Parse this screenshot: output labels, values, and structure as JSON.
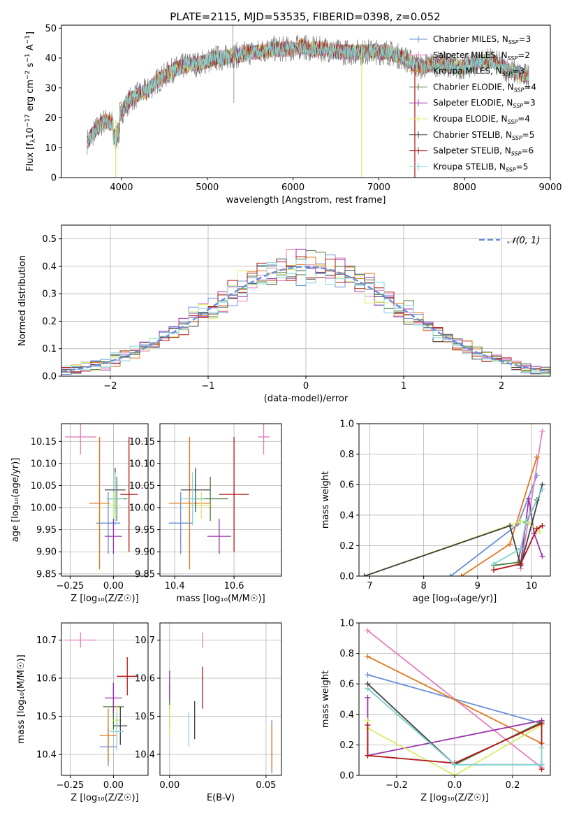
{
  "figure": {
    "title": "PLATE=2115, MJD=53535, FIBERID=0398, z=0.052",
    "colors": {
      "chabrier_miles": "#6a8fd8",
      "salpeter_miles": "#e57fbf",
      "kroupa_miles": "#e0781e",
      "chabrier_elodie": "#4e7a3a",
      "salpeter_elodie": "#9b34ad",
      "kroupa_elodie": "#d8ec6a",
      "chabrier_stelib": "#404040",
      "salpeter_stelib": "#b01515",
      "kroupa_stelib": "#7fd6d6",
      "data": "#7f7f7f"
    }
  },
  "chart_data": [
    {
      "type": "line",
      "title": "PLATE=2115, MJD=53535, FIBERID=0398, z=0.052",
      "xlabel": "wavelength [Angstrom, rest frame]",
      "ylabel_pre": "Flux [f",
      "ylabel_sub": "λ",
      "ylabel_mid": "10",
      "ylabel_exp": "−17",
      "ylabel_post": " erg cm",
      "ylabel_exp2": "−2",
      "ylabel_post2": " s",
      "ylabel_exp3": "−1",
      "ylabel_post3": " A",
      "ylabel_exp4": "−1",
      "ylabel_end": "]",
      "xlim": [
        3300,
        9000
      ],
      "ylim": [
        0,
        51
      ],
      "xticks": [
        "4000",
        "5000",
        "6000",
        "7000",
        "8000",
        "9000"
      ],
      "yticks": [
        "0",
        "10",
        "20",
        "30",
        "40",
        "50"
      ],
      "grid": false,
      "legend_position": "top-right",
      "legend": [
        {
          "text": "Chabrier MILES, N",
          "sub": "SSP",
          "suffix": "=3"
        },
        {
          "text": "Salpeter MILES, N",
          "sub": "SSP",
          "suffix": "=2"
        },
        {
          "text": "Kroupa MILES, N",
          "sub": "SSP",
          "suffix": "=3"
        },
        {
          "text": "Chabrier ELODIE, N",
          "sub": "SSP",
          "suffix": "=4"
        },
        {
          "text": "Salpeter ELODIE, N",
          "sub": "SSP",
          "suffix": "=3"
        },
        {
          "text": "Kroupa ELODIE, N",
          "sub": "SSP",
          "suffix": "=4"
        },
        {
          "text": "Chabrier STELIB, N",
          "sub": "SSP",
          "suffix": "=5"
        },
        {
          "text": "Salpeter STELIB, N",
          "sub": "SSP",
          "suffix": "=6"
        },
        {
          "text": "Kroupa STELIB, N",
          "sub": "SSP",
          "suffix": "=5"
        }
      ],
      "continuum": [
        [
          3600,
          12
        ],
        [
          3700,
          16
        ],
        [
          3800,
          19
        ],
        [
          3900,
          18
        ],
        [
          4000,
          22
        ],
        [
          4100,
          26
        ],
        [
          4200,
          28
        ],
        [
          4300,
          29
        ],
        [
          4400,
          32
        ],
        [
          4500,
          34
        ],
        [
          4600,
          36
        ],
        [
          4700,
          37
        ],
        [
          4800,
          38
        ],
        [
          4900,
          38
        ],
        [
          5000,
          39
        ],
        [
          5100,
          40
        ],
        [
          5200,
          40
        ],
        [
          5300,
          41
        ],
        [
          5400,
          41
        ],
        [
          5500,
          42
        ],
        [
          5600,
          42
        ],
        [
          5700,
          43
        ],
        [
          5800,
          43
        ],
        [
          5900,
          43
        ],
        [
          6000,
          43
        ],
        [
          6100,
          44
        ],
        [
          6200,
          43
        ],
        [
          6300,
          43
        ],
        [
          6400,
          43
        ],
        [
          6500,
          42
        ],
        [
          6600,
          42
        ],
        [
          6700,
          42
        ],
        [
          6800,
          42
        ],
        [
          6900,
          42
        ],
        [
          7000,
          42
        ],
        [
          7100,
          42
        ],
        [
          7200,
          41
        ],
        [
          7300,
          40
        ],
        [
          7400,
          38
        ],
        [
          7500,
          37
        ],
        [
          7600,
          38
        ],
        [
          7700,
          38
        ],
        [
          7800,
          38
        ],
        [
          7900,
          37
        ],
        [
          8000,
          37
        ],
        [
          8100,
          38
        ],
        [
          8200,
          39
        ],
        [
          8300,
          39
        ],
        [
          8400,
          38
        ],
        [
          8500,
          36
        ],
        [
          8600,
          35
        ],
        [
          8700,
          34
        ],
        [
          8750,
          34
        ]
      ],
      "dips": [
        {
          "x": 3933,
          "y": 0,
          "series": "kroupa_elodie"
        },
        {
          "x": 6800,
          "y": 0,
          "series": "kroupa_elodie"
        },
        {
          "x": 7420,
          "y": 0,
          "series": "salpeter_stelib"
        }
      ]
    },
    {
      "type": "histogram",
      "xlabel": "(data-model)/error",
      "ylabel": "Normed distribution",
      "xlim": [
        -2.5,
        2.5
      ],
      "ylim": [
        0,
        0.55
      ],
      "xticks": [
        "−2",
        "−1",
        "0",
        "1",
        "2"
      ],
      "yticks": [
        "0.0",
        "0.1",
        "0.2",
        "0.3",
        "0.4",
        "0.5"
      ],
      "grid": true,
      "legend_position": "top-right",
      "legend_label": "𝒩(0, 1)",
      "bin_width": 0.1,
      "bin_start": -2.5
    },
    {
      "type": "errorbar",
      "xlabel": "Z [log₁₀(Z/Z☉)]",
      "ylabel": "age  [log₁₀(age/yr)]",
      "xlim": [
        -0.3,
        0.2
      ],
      "ylim": [
        9.845,
        10.19
      ],
      "xticks": [
        "−0.25",
        "0.00"
      ],
      "yticks": [
        "9.85",
        "9.90",
        "9.95",
        "10.00",
        "10.05",
        "10.10",
        "10.15"
      ],
      "grid": true,
      "points": [
        {
          "series": "salpeter_miles",
          "x": -0.19,
          "y": 10.16,
          "xerr": 0.09,
          "yerr": 0.04
        },
        {
          "series": "chabrier_miles",
          "x": -0.03,
          "y": 9.965,
          "xerr": 0.07,
          "yerr": 0.07
        },
        {
          "series": "kroupa_miles",
          "x": -0.08,
          "y": 10.01,
          "xerr": 0.06,
          "yerr": 0.15
        },
        {
          "series": "chabrier_elodie",
          "x": 0.02,
          "y": 10.02,
          "xerr": 0.06,
          "yerr": 0.05
        },
        {
          "series": "salpeter_elodie",
          "x": 0.0,
          "y": 9.935,
          "xerr": 0.05,
          "yerr": 0.04
        },
        {
          "series": "kroupa_elodie",
          "x": 0.0,
          "y": 10.005,
          "xerr": 0.04,
          "yerr": 0.03
        },
        {
          "series": "chabrier_stelib",
          "x": 0.01,
          "y": 10.04,
          "xerr": 0.06,
          "yerr": 0.05
        },
        {
          "series": "salpeter_stelib",
          "x": 0.09,
          "y": 10.03,
          "xerr": 0.05,
          "yerr": 0.13
        },
        {
          "series": "kroupa_stelib",
          "x": 0.01,
          "y": 10.02,
          "xerr": 0.05,
          "yerr": 0.06
        }
      ]
    },
    {
      "type": "errorbar",
      "xlabel": "mass [log₁₀(M/M☉)]",
      "ylabel": "",
      "xlim": [
        10.35,
        10.76
      ],
      "ylim": [
        9.845,
        10.19
      ],
      "xticks": [
        "10.4",
        "10.6"
      ],
      "yticks": [
        "9.85",
        "9.90",
        "9.95",
        "10.00",
        "10.05",
        "10.10",
        "10.15"
      ],
      "grid": true,
      "points": [
        {
          "series": "salpeter_miles",
          "x": 10.7,
          "y": 10.16,
          "xerr": 0.02,
          "yerr": 0.04
        },
        {
          "series": "chabrier_miles",
          "x": 10.42,
          "y": 9.965,
          "xerr": 0.04,
          "yerr": 0.07
        },
        {
          "series": "kroupa_miles",
          "x": 10.45,
          "y": 10.01,
          "xerr": 0.07,
          "yerr": 0.15
        },
        {
          "series": "chabrier_elodie",
          "x": 10.52,
          "y": 10.02,
          "xerr": 0.06,
          "yerr": 0.05
        },
        {
          "series": "salpeter_elodie",
          "x": 10.55,
          "y": 9.935,
          "xerr": 0.04,
          "yerr": 0.04
        },
        {
          "series": "kroupa_elodie",
          "x": 10.49,
          "y": 10.005,
          "xerr": 0.04,
          "yerr": 0.03
        },
        {
          "series": "chabrier_stelib",
          "x": 10.47,
          "y": 10.04,
          "xerr": 0.05,
          "yerr": 0.05
        },
        {
          "series": "salpeter_stelib",
          "x": 10.6,
          "y": 10.03,
          "xerr": 0.05,
          "yerr": 0.13
        },
        {
          "series": "kroupa_stelib",
          "x": 10.46,
          "y": 10.02,
          "xerr": 0.04,
          "yerr": 0.06
        }
      ]
    },
    {
      "type": "line",
      "xlabel": "age  [log₁₀(age/yr)]",
      "ylabel": "mass weight",
      "xlim": [
        6.8,
        10.35
      ],
      "ylim": [
        0,
        1.0
      ],
      "xticks": [
        "7",
        "8",
        "9",
        "10"
      ],
      "yticks": [
        "0.0",
        "0.2",
        "0.4",
        "0.6",
        "0.8",
        "1.0"
      ],
      "grid": true,
      "series": [
        {
          "series": "chabrier_miles",
          "points": [
            [
              8.5,
              0.0
            ],
            [
              9.75,
              0.34
            ],
            [
              10.1,
              0.66
            ]
          ]
        },
        {
          "series": "salpeter_miles",
          "points": [
            [
              9.8,
              0.05
            ],
            [
              10.2,
              0.95
            ]
          ]
        },
        {
          "series": "kroupa_miles",
          "points": [
            [
              8.7,
              0.0
            ],
            [
              9.6,
              0.21
            ],
            [
              10.1,
              0.78
            ]
          ]
        },
        {
          "series": "chabrier_elodie",
          "points": [
            [
              9.3,
              0.07
            ],
            [
              9.75,
              0.09
            ],
            [
              9.9,
              0.35
            ],
            [
              10.1,
              0.5
            ]
          ]
        },
        {
          "series": "salpeter_elodie",
          "points": [
            [
              9.8,
              0.08
            ],
            [
              9.95,
              0.51
            ],
            [
              10.05,
              0.28
            ],
            [
              10.2,
              0.13
            ]
          ]
        },
        {
          "series": "kroupa_elodie",
          "points": [
            [
              6.9,
              0.0
            ],
            [
              9.8,
              0.36
            ],
            [
              9.95,
              0.35
            ],
            [
              10.15,
              0.29
            ]
          ]
        },
        {
          "series": "chabrier_stelib",
          "points": [
            [
              6.9,
              0.0
            ],
            [
              9.6,
              0.33
            ],
            [
              9.8,
              0.07
            ],
            [
              10.2,
              0.6
            ]
          ]
        },
        {
          "series": "salpeter_stelib",
          "points": [
            [
              9.3,
              0.04
            ],
            [
              9.8,
              0.08
            ],
            [
              10.1,
              0.31
            ],
            [
              10.2,
              0.33
            ]
          ]
        },
        {
          "series": "kroupa_stelib",
          "points": [
            [
              9.3,
              0.08
            ],
            [
              9.8,
              0.18
            ],
            [
              9.9,
              0.36
            ],
            [
              10.2,
              0.57
            ]
          ]
        }
      ]
    },
    {
      "type": "errorbar",
      "xlabel": "Z [log₁₀(Z/Z☉)]",
      "ylabel": "mass [log₁₀(M/M☉)]",
      "xlim": [
        -0.3,
        0.2
      ],
      "ylim": [
        10.345,
        10.745
      ],
      "xticks": [
        "−0.25",
        "0.00"
      ],
      "yticks": [
        "10.4",
        "10.5",
        "10.6",
        "10.7"
      ],
      "grid": true,
      "points": [
        {
          "series": "salpeter_miles",
          "x": -0.19,
          "y": 10.7,
          "xerr": 0.09,
          "yerr": 0.02
        },
        {
          "series": "chabrier_miles",
          "x": -0.03,
          "y": 10.42,
          "xerr": 0.05,
          "yerr": 0.05
        },
        {
          "series": "kroupa_miles",
          "x": -0.03,
          "y": 10.45,
          "xerr": 0.05,
          "yerr": 0.07
        },
        {
          "series": "chabrier_elodie",
          "x": 0.0,
          "y": 10.525,
          "xerr": 0.06,
          "yerr": 0.06
        },
        {
          "series": "salpeter_elodie",
          "x": 0.0,
          "y": 10.548,
          "xerr": 0.05,
          "yerr": 0.04
        },
        {
          "series": "kroupa_elodie",
          "x": 0.02,
          "y": 10.49,
          "xerr": 0.03,
          "yerr": 0.04
        },
        {
          "series": "chabrier_stelib",
          "x": 0.04,
          "y": 10.475,
          "xerr": 0.04,
          "yerr": 0.05
        },
        {
          "series": "salpeter_stelib",
          "x": 0.08,
          "y": 10.605,
          "xerr": 0.06,
          "yerr": 0.05
        },
        {
          "series": "kroupa_stelib",
          "x": 0.02,
          "y": 10.46,
          "xerr": 0.04,
          "yerr": 0.05
        }
      ]
    },
    {
      "type": "errorbar",
      "xlabel": "E(B-V)",
      "ylabel": "",
      "xlim": [
        -0.005,
        0.058
      ],
      "ylim": [
        10.345,
        10.745
      ],
      "xticks": [
        "0.00",
        "0.05"
      ],
      "yticks": [
        "10.4",
        "10.5",
        "10.6",
        "10.7"
      ],
      "grid": true,
      "points": [
        {
          "series": "salpeter_miles",
          "x": 0.017,
          "y": 10.7,
          "xerr": 0,
          "yerr": 0.02
        },
        {
          "series": "chabrier_miles",
          "x": 0.053,
          "y": 10.42,
          "xerr": 0,
          "yerr": 0.07
        },
        {
          "series": "kroupa_miles",
          "x": 0.053,
          "y": 10.42,
          "xerr": 0,
          "yerr": 0.06
        },
        {
          "series": "chabrier_elodie",
          "x": 0.0,
          "y": 10.525,
          "xerr": 0,
          "yerr": 0.06
        },
        {
          "series": "salpeter_elodie",
          "x": 0.0,
          "y": 10.58,
          "xerr": 0,
          "yerr": 0.04
        },
        {
          "series": "kroupa_elodie",
          "x": 0.0,
          "y": 10.49,
          "xerr": 0,
          "yerr": 0.04
        },
        {
          "series": "chabrier_stelib",
          "x": 0.013,
          "y": 10.49,
          "xerr": 0,
          "yerr": 0.05
        },
        {
          "series": "salpeter_stelib",
          "x": 0.017,
          "y": 10.575,
          "xerr": 0,
          "yerr": 0.055
        },
        {
          "series": "kroupa_stelib",
          "x": 0.01,
          "y": 10.465,
          "xerr": 0,
          "yerr": 0.045
        }
      ]
    },
    {
      "type": "line",
      "xlabel": "Z [log₁₀(Z/Z☉)]",
      "ylabel": "mass weight",
      "xlim": [
        -0.33,
        0.33
      ],
      "ylim": [
        0,
        1.0
      ],
      "xticks": [
        "−0.2",
        "0.0",
        "0.2"
      ],
      "yticks": [
        "0.0",
        "0.2",
        "0.4",
        "0.6",
        "0.8",
        "1.0"
      ],
      "grid": true,
      "series": [
        {
          "series": "chabrier_miles",
          "points": [
            [
              -0.3,
              0.66
            ],
            [
              0.3,
              0.34
            ]
          ]
        },
        {
          "series": "salpeter_miles",
          "points": [
            [
              -0.3,
              0.95
            ],
            [
              0.3,
              0.05
            ]
          ]
        },
        {
          "series": "kroupa_miles",
          "points": [
            [
              -0.3,
              0.78
            ],
            [
              0.3,
              0.21
            ]
          ]
        },
        {
          "series": "chabrier_elodie",
          "points": [
            [
              -0.3,
              0.57
            ],
            [
              0.0,
              0.07
            ],
            [
              0.3,
              0.35
            ]
          ]
        },
        {
          "series": "salpeter_elodie",
          "points": [
            [
              -0.3,
              0.51
            ],
            [
              -0.3,
              0.13
            ],
            [
              0.3,
              0.36
            ]
          ]
        },
        {
          "series": "kroupa_elodie",
          "points": [
            [
              -0.3,
              0.36
            ],
            [
              -0.3,
              0.31
            ],
            [
              0.0,
              0.0
            ],
            [
              0.3,
              0.33
            ]
          ]
        },
        {
          "series": "chabrier_stelib",
          "points": [
            [
              -0.3,
              0.6
            ],
            [
              0.0,
              0.07
            ],
            [
              0.3,
              0.07
            ]
          ]
        },
        {
          "series": "salpeter_stelib",
          "points": [
            [
              -0.3,
              0.33
            ],
            [
              -0.3,
              0.13
            ],
            [
              0.0,
              0.08
            ],
            [
              0.3,
              0.34
            ],
            [
              0.3,
              0.04
            ]
          ]
        },
        {
          "series": "kroupa_stelib",
          "points": [
            [
              -0.3,
              0.57
            ],
            [
              0.0,
              0.07
            ],
            [
              0.3,
              0.07
            ],
            [
              0.3,
              0.18
            ]
          ]
        }
      ]
    }
  ]
}
